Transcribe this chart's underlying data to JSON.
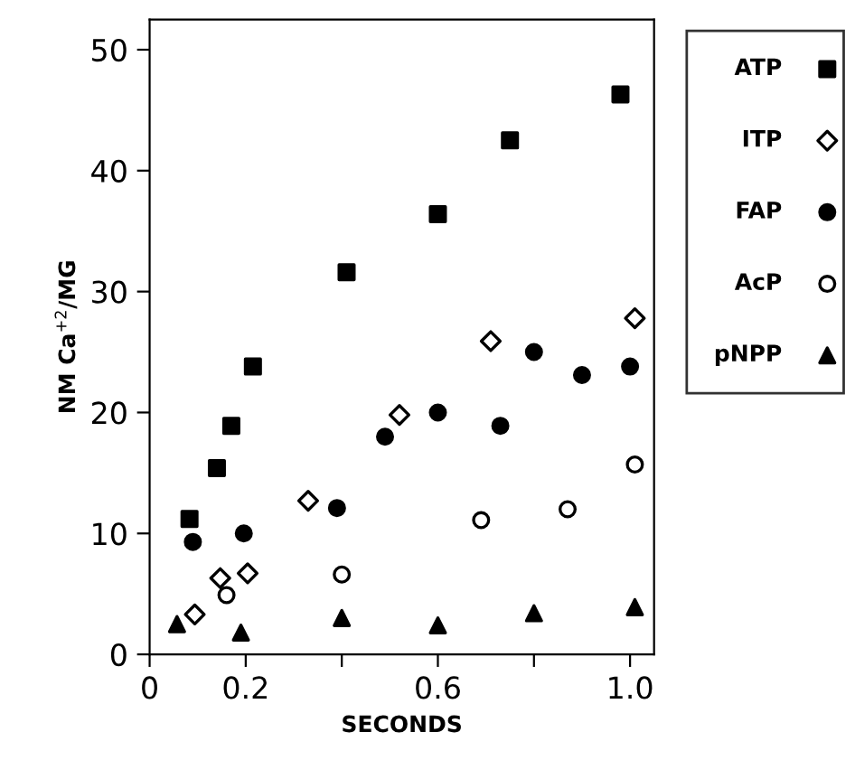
{
  "chart_data": {
    "type": "scatter",
    "xlabel": "SECONDS",
    "ylabel": "NM Ca$^{+2}$/MG",
    "xlim": [
      0,
      1.05
    ],
    "ylim": [
      0,
      52.5
    ],
    "xticks": [
      0,
      0.2,
      {
        "value": 0.4,
        "label": null
      },
      0.6,
      {
        "value": 0.8,
        "label": null
      },
      {
        "value": 1,
        "label": "1.0"
      }
    ],
    "yticks": [
      0,
      10,
      20,
      30,
      40,
      50
    ],
    "grid": false,
    "legend": "right",
    "series": [
      {
        "name": "ATP",
        "color": "#000000",
        "marker": "square",
        "x": [
          0.083,
          0.14,
          0.17,
          0.215,
          0.41,
          0.6,
          0.75,
          0.98
        ],
        "values": [
          11.2,
          15.4,
          18.9,
          23.8,
          31.6,
          36.4,
          42.5,
          46.3
        ]
      },
      {
        "name": "ITP",
        "color": "#ffffff",
        "marker": "diamond",
        "x": [
          0.094,
          0.147,
          0.204,
          0.33,
          0.52,
          0.71,
          1.01
        ],
        "values": [
          3.3,
          6.3,
          6.7,
          12.7,
          19.8,
          25.9,
          27.8
        ]
      },
      {
        "name": "FAP",
        "color": "#000000",
        "marker": "circle",
        "x": [
          0.09,
          0.196,
          0.39,
          0.49,
          0.6,
          0.73,
          0.8,
          0.9,
          1.0
        ],
        "values": [
          9.3,
          10.0,
          12.1,
          18.0,
          20.0,
          18.9,
          25.0,
          23.1,
          23.8
        ]
      },
      {
        "name": "AcP",
        "color": "#ffffff",
        "marker": "circle",
        "x": [
          0.16,
          0.4,
          0.69,
          0.87,
          1.01
        ],
        "values": [
          4.9,
          6.6,
          11.1,
          12.0,
          15.7
        ]
      },
      {
        "name": "pNPP",
        "color": "#000000",
        "marker": "triangle",
        "x": [
          0.057,
          0.19,
          0.4,
          0.6,
          0.8,
          1.01
        ],
        "values": [
          2.5,
          1.8,
          3.0,
          2.4,
          3.4,
          3.9
        ]
      }
    ]
  }
}
